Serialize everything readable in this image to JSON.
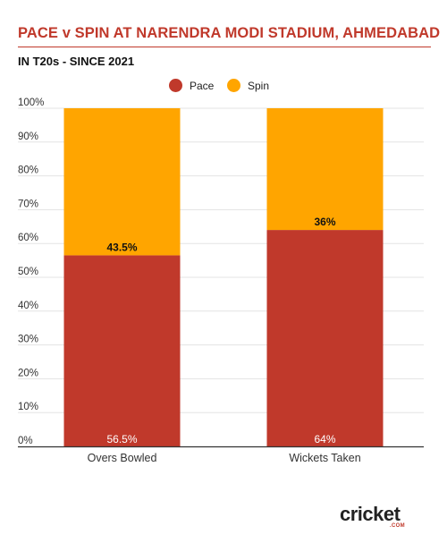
{
  "chart_data": {
    "type": "bar",
    "stacked": true,
    "title": "PACE v SPIN AT NARENDRA MODI STADIUM, AHMEDABAD",
    "subtitle": "IN T20s - SINCE 2021",
    "categories": [
      "Overs Bowled",
      "Wickets Taken"
    ],
    "series": [
      {
        "name": "Pace",
        "values": [
          56.5,
          64
        ],
        "labels": [
          "56.5%",
          "64%"
        ],
        "color": "#c0392b"
      },
      {
        "name": "Spin",
        "values": [
          43.5,
          36
        ],
        "labels": [
          "43.5%",
          "36%"
        ],
        "color": "#ffa500"
      }
    ],
    "ylim": [
      0,
      100
    ],
    "yticks": [
      "0%",
      "10%",
      "20%",
      "30%",
      "40%",
      "50%",
      "60%",
      "70%",
      "80%",
      "90%",
      "100%"
    ],
    "grid": true,
    "legend_position": "top-center"
  },
  "logo": {
    "text": "cricket",
    "sub": ".COM",
    "icon": "cricket-com-logo"
  }
}
